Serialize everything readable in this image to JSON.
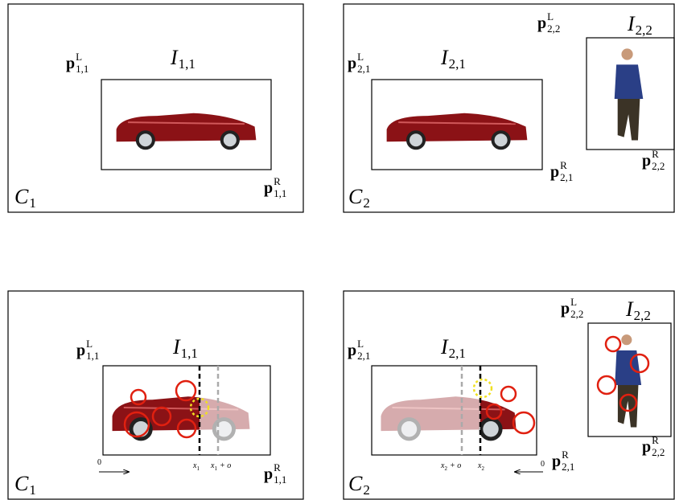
{
  "panels": [
    {
      "camera": {
        "base": "C",
        "sub": "1"
      },
      "images": [
        {
          "name": {
            "base": "I",
            "sub": "1,1"
          },
          "left": {
            "base": "p",
            "sup": "L",
            "sub": "1,1"
          },
          "right": {
            "base": "p",
            "sup": "R",
            "sub": "1,1"
          }
        }
      ]
    },
    {
      "camera": {
        "base": "C",
        "sub": "2"
      },
      "images": [
        {
          "name": {
            "base": "I",
            "sub": "2,1"
          },
          "left": {
            "base": "p",
            "sup": "L",
            "sub": "2,1"
          },
          "right": {
            "base": "p",
            "sup": "R",
            "sub": "2,1"
          }
        },
        {
          "name": {
            "base": "I",
            "sub": "2,2"
          },
          "left": {
            "base": "p",
            "sup": "L",
            "sub": "2,2"
          },
          "right": {
            "base": "p",
            "sup": "R",
            "sub": "2,2"
          }
        }
      ]
    },
    {
      "camera": {
        "base": "C",
        "sub": "1"
      },
      "images": [
        {
          "name": {
            "base": "I",
            "sub": "1,1"
          },
          "left": {
            "base": "p",
            "sup": "L",
            "sub": "1,1"
          },
          "right": {
            "base": "p",
            "sup": "R",
            "sub": "1,1"
          }
        }
      ],
      "axis": {
        "origin": "0",
        "ticks": [
          {
            "base": "x",
            "sub": "1"
          },
          {
            "base": "x",
            "sub": "1",
            "suffix": "+ o"
          }
        ]
      }
    },
    {
      "camera": {
        "base": "C",
        "sub": "2"
      },
      "images": [
        {
          "name": {
            "base": "I",
            "sub": "2,1"
          },
          "left": {
            "base": "p",
            "sup": "L",
            "sub": "2,1"
          },
          "right": {
            "base": "p",
            "sup": "R",
            "sub": "2,1"
          }
        },
        {
          "name": {
            "base": "I",
            "sub": "2,2"
          },
          "left": {
            "base": "p",
            "sup": "L",
            "sub": "2,2"
          },
          "right": {
            "base": "p",
            "sup": "R",
            "sub": "2,2"
          }
        }
      ],
      "axis": {
        "origin": "0",
        "ticks": [
          {
            "base": "x",
            "sub": "2",
            "suffix": "+ o"
          },
          {
            "base": "x",
            "sub": "2"
          }
        ]
      }
    }
  ]
}
